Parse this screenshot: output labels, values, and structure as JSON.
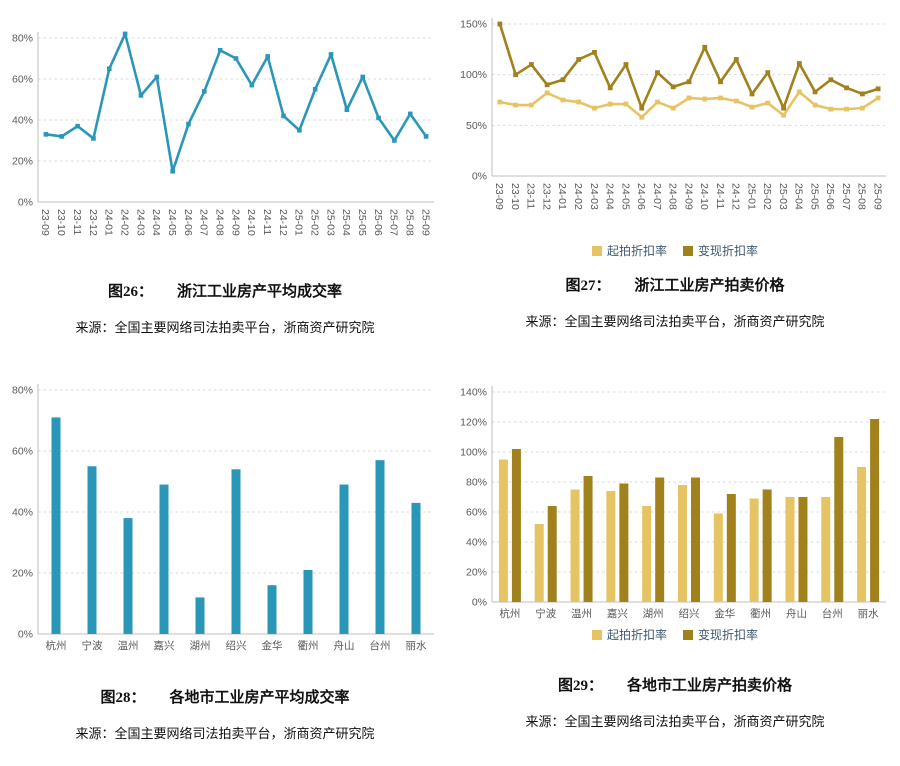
{
  "colors": {
    "teal": "#2b97b8",
    "light_gold": "#e7c463",
    "dark_gold": "#a1811c",
    "grid": "#d9d9d9",
    "axis": "#bfbfbf",
    "tick_text": "#595959",
    "legend_text": "#3f5870"
  },
  "figures": [
    {
      "caption_prefix": "图26：",
      "caption_title": "浙江工业房产平均成交率",
      "source": "来源：全国主要网络司法拍卖平台，浙商资产研究院"
    },
    {
      "caption_prefix": "图27：",
      "caption_title": "浙江工业房产拍卖价格",
      "source": "来源：全国主要网络司法拍卖平台，浙商资产研究院"
    },
    {
      "caption_prefix": "图28：",
      "caption_title": "各地市工业房产平均成交率",
      "source": "来源：全国主要网络司法拍卖平台，浙商资产研究院"
    },
    {
      "caption_prefix": "图29：",
      "caption_title": "各地市工业房产拍卖价格",
      "source": "来源：全国主要网络司法拍卖平台，浙商资产研究院"
    }
  ],
  "chart_data": [
    {
      "id": "chart26",
      "type": "line",
      "title": "图26：浙江工业房产平均成交率",
      "categories": [
        "23-09",
        "23-10",
        "23-11",
        "23-12",
        "24-01",
        "24-02",
        "24-03",
        "24-04",
        "24-05",
        "24-06",
        "24-07",
        "24-08",
        "24-09",
        "24-10",
        "24-11",
        "24-12",
        "25-01",
        "25-02",
        "25-03",
        "25-04",
        "25-05",
        "25-06",
        "25-07",
        "25-08",
        "25-09"
      ],
      "series": [
        {
          "name": "平均成交率",
          "color": "#2b97b8",
          "values": [
            33,
            32,
            37,
            31,
            65,
            82,
            52,
            61,
            15,
            38,
            54,
            74,
            70,
            57,
            71,
            42,
            35,
            55,
            72,
            45,
            61,
            41,
            30,
            43,
            32
          ]
        }
      ],
      "ylim": [
        0,
        80
      ],
      "ytick_step": 20,
      "unit": "%",
      "grid": true,
      "x_label_rotation": 90,
      "legend_position": "none"
    },
    {
      "id": "chart27",
      "type": "line",
      "title": "图27：浙江工业房产拍卖价格",
      "categories": [
        "23-09",
        "23-10",
        "23-11",
        "23-12",
        "24-01",
        "24-02",
        "24-03",
        "24-04",
        "24-05",
        "24-06",
        "24-07",
        "24-08",
        "24-09",
        "24-10",
        "24-11",
        "24-12",
        "25-01",
        "25-02",
        "25-03",
        "25-04",
        "25-05",
        "25-06",
        "25-07",
        "25-08",
        "25-09"
      ],
      "series": [
        {
          "name": "起拍折扣率",
          "color": "#e7c463",
          "values": [
            73,
            70,
            70,
            82,
            75,
            73,
            67,
            71,
            71,
            58,
            73,
            67,
            77,
            76,
            77,
            74,
            68,
            72,
            60,
            83,
            70,
            66,
            66,
            67,
            77
          ]
        },
        {
          "name": "变现折扣率",
          "color": "#a1811c",
          "values": [
            150,
            100,
            110,
            90,
            95,
            115,
            122,
            87,
            110,
            67,
            102,
            88,
            93,
            127,
            93,
            115,
            81,
            102,
            67,
            111,
            83,
            95,
            87,
            81,
            86
          ]
        }
      ],
      "ylim": [
        0,
        150
      ],
      "ytick_step": 50,
      "unit": "%",
      "grid": true,
      "x_label_rotation": 90,
      "legend_position": "bottom"
    },
    {
      "id": "chart28",
      "type": "bar",
      "title": "图28：各地市工业房产平均成交率",
      "categories": [
        "杭州",
        "宁波",
        "温州",
        "嘉兴",
        "湖州",
        "绍兴",
        "金华",
        "衢州",
        "舟山",
        "台州",
        "丽水"
      ],
      "series": [
        {
          "name": "平均成交率",
          "color": "#2b97b8",
          "values": [
            71,
            55,
            38,
            49,
            12,
            54,
            16,
            21,
            49,
            57,
            43
          ]
        }
      ],
      "ylim": [
        0,
        80
      ],
      "ytick_step": 20,
      "unit": "%",
      "grid": true,
      "x_label_rotation": 0,
      "legend_position": "none"
    },
    {
      "id": "chart29",
      "type": "bar",
      "title": "图29：各地市工业房产拍卖价格",
      "categories": [
        "杭州",
        "宁波",
        "温州",
        "嘉兴",
        "湖州",
        "绍兴",
        "金华",
        "衢州",
        "舟山",
        "台州",
        "丽水"
      ],
      "series": [
        {
          "name": "起拍折扣率",
          "color": "#e7c463",
          "values": [
            95,
            52,
            75,
            74,
            64,
            78,
            59,
            69,
            70,
            70,
            90
          ]
        },
        {
          "name": "变现折扣率",
          "color": "#a1811c",
          "values": [
            102,
            64,
            84,
            79,
            83,
            83,
            72,
            75,
            70,
            110,
            122
          ]
        }
      ],
      "ylim": [
        0,
        140
      ],
      "ytick_step": 20,
      "unit": "%",
      "grid": true,
      "x_label_rotation": 0,
      "legend_position": "bottom"
    }
  ]
}
